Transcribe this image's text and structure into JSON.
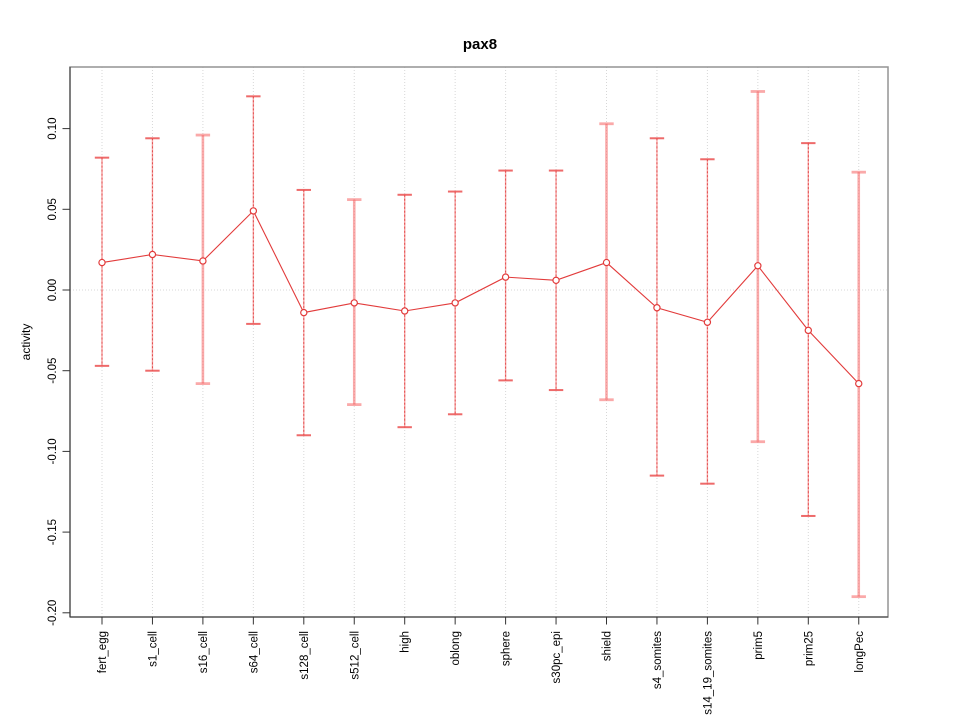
{
  "figure": {
    "title": "pax8",
    "y_axis_label": "activity"
  },
  "chart_data": {
    "type": "line",
    "title": "pax8",
    "xlabel": "",
    "ylabel": "activity",
    "categories": [
      "fert_egg",
      "s1_cell",
      "s16_cell",
      "s64_cell",
      "s128_cell",
      "s512_cell",
      "high",
      "oblong",
      "sphere",
      "s30pc_epi",
      "shield",
      "s4_somites",
      "s14_19_somites",
      "prim5",
      "prim25",
      "longPec"
    ],
    "series": [
      {
        "name": "activity",
        "values": [
          0.017,
          0.022,
          0.018,
          0.049,
          -0.014,
          -0.008,
          -0.013,
          -0.008,
          0.008,
          0.006,
          0.017,
          -0.011,
          -0.02,
          0.015,
          -0.025,
          -0.058
        ]
      }
    ],
    "error_bars": {
      "upper": [
        0.082,
        0.094,
        0.096,
        0.12,
        0.062,
        0.056,
        0.059,
        0.061,
        0.074,
        0.074,
        0.103,
        0.094,
        0.081,
        0.123,
        0.091,
        0.073
      ],
      "lower": [
        -0.047,
        -0.05,
        -0.058,
        -0.021,
        -0.09,
        -0.071,
        -0.085,
        -0.077,
        -0.056,
        -0.062,
        -0.068,
        -0.115,
        -0.12,
        -0.094,
        -0.14,
        -0.19
      ]
    },
    "yticks": [
      0.1,
      0.05,
      0.0,
      -0.05,
      -0.1,
      -0.15,
      -0.2
    ],
    "ylim": [
      -0.205,
      0.128
    ],
    "grid": {
      "vertical_dotted_per_category": true,
      "horizontal_dotted_zero_line": true
    },
    "legend_position": "none",
    "marker": "open-circle",
    "bar_styles": [
      "crisp",
      "crisp",
      "soft",
      "crisp",
      "crisp",
      "soft",
      "crisp",
      "crisp",
      "crisp",
      "crisp",
      "soft",
      "crisp",
      "crisp",
      "soft",
      "crisp",
      "soft"
    ],
    "colors": {
      "line": "#e23b3b",
      "marker_stroke": "#e23b3b",
      "marker_fill": "#ffffff",
      "error_bar_soft": "rgba(247,112,112,0.60)",
      "error_bar_crisp": "#e04040",
      "grid": "#d7d7d7",
      "zero_line": "#d7d7d7",
      "panel_border": "#949494",
      "axis": "#333333",
      "tick_label": "#000000",
      "background": "#ffffff"
    }
  }
}
